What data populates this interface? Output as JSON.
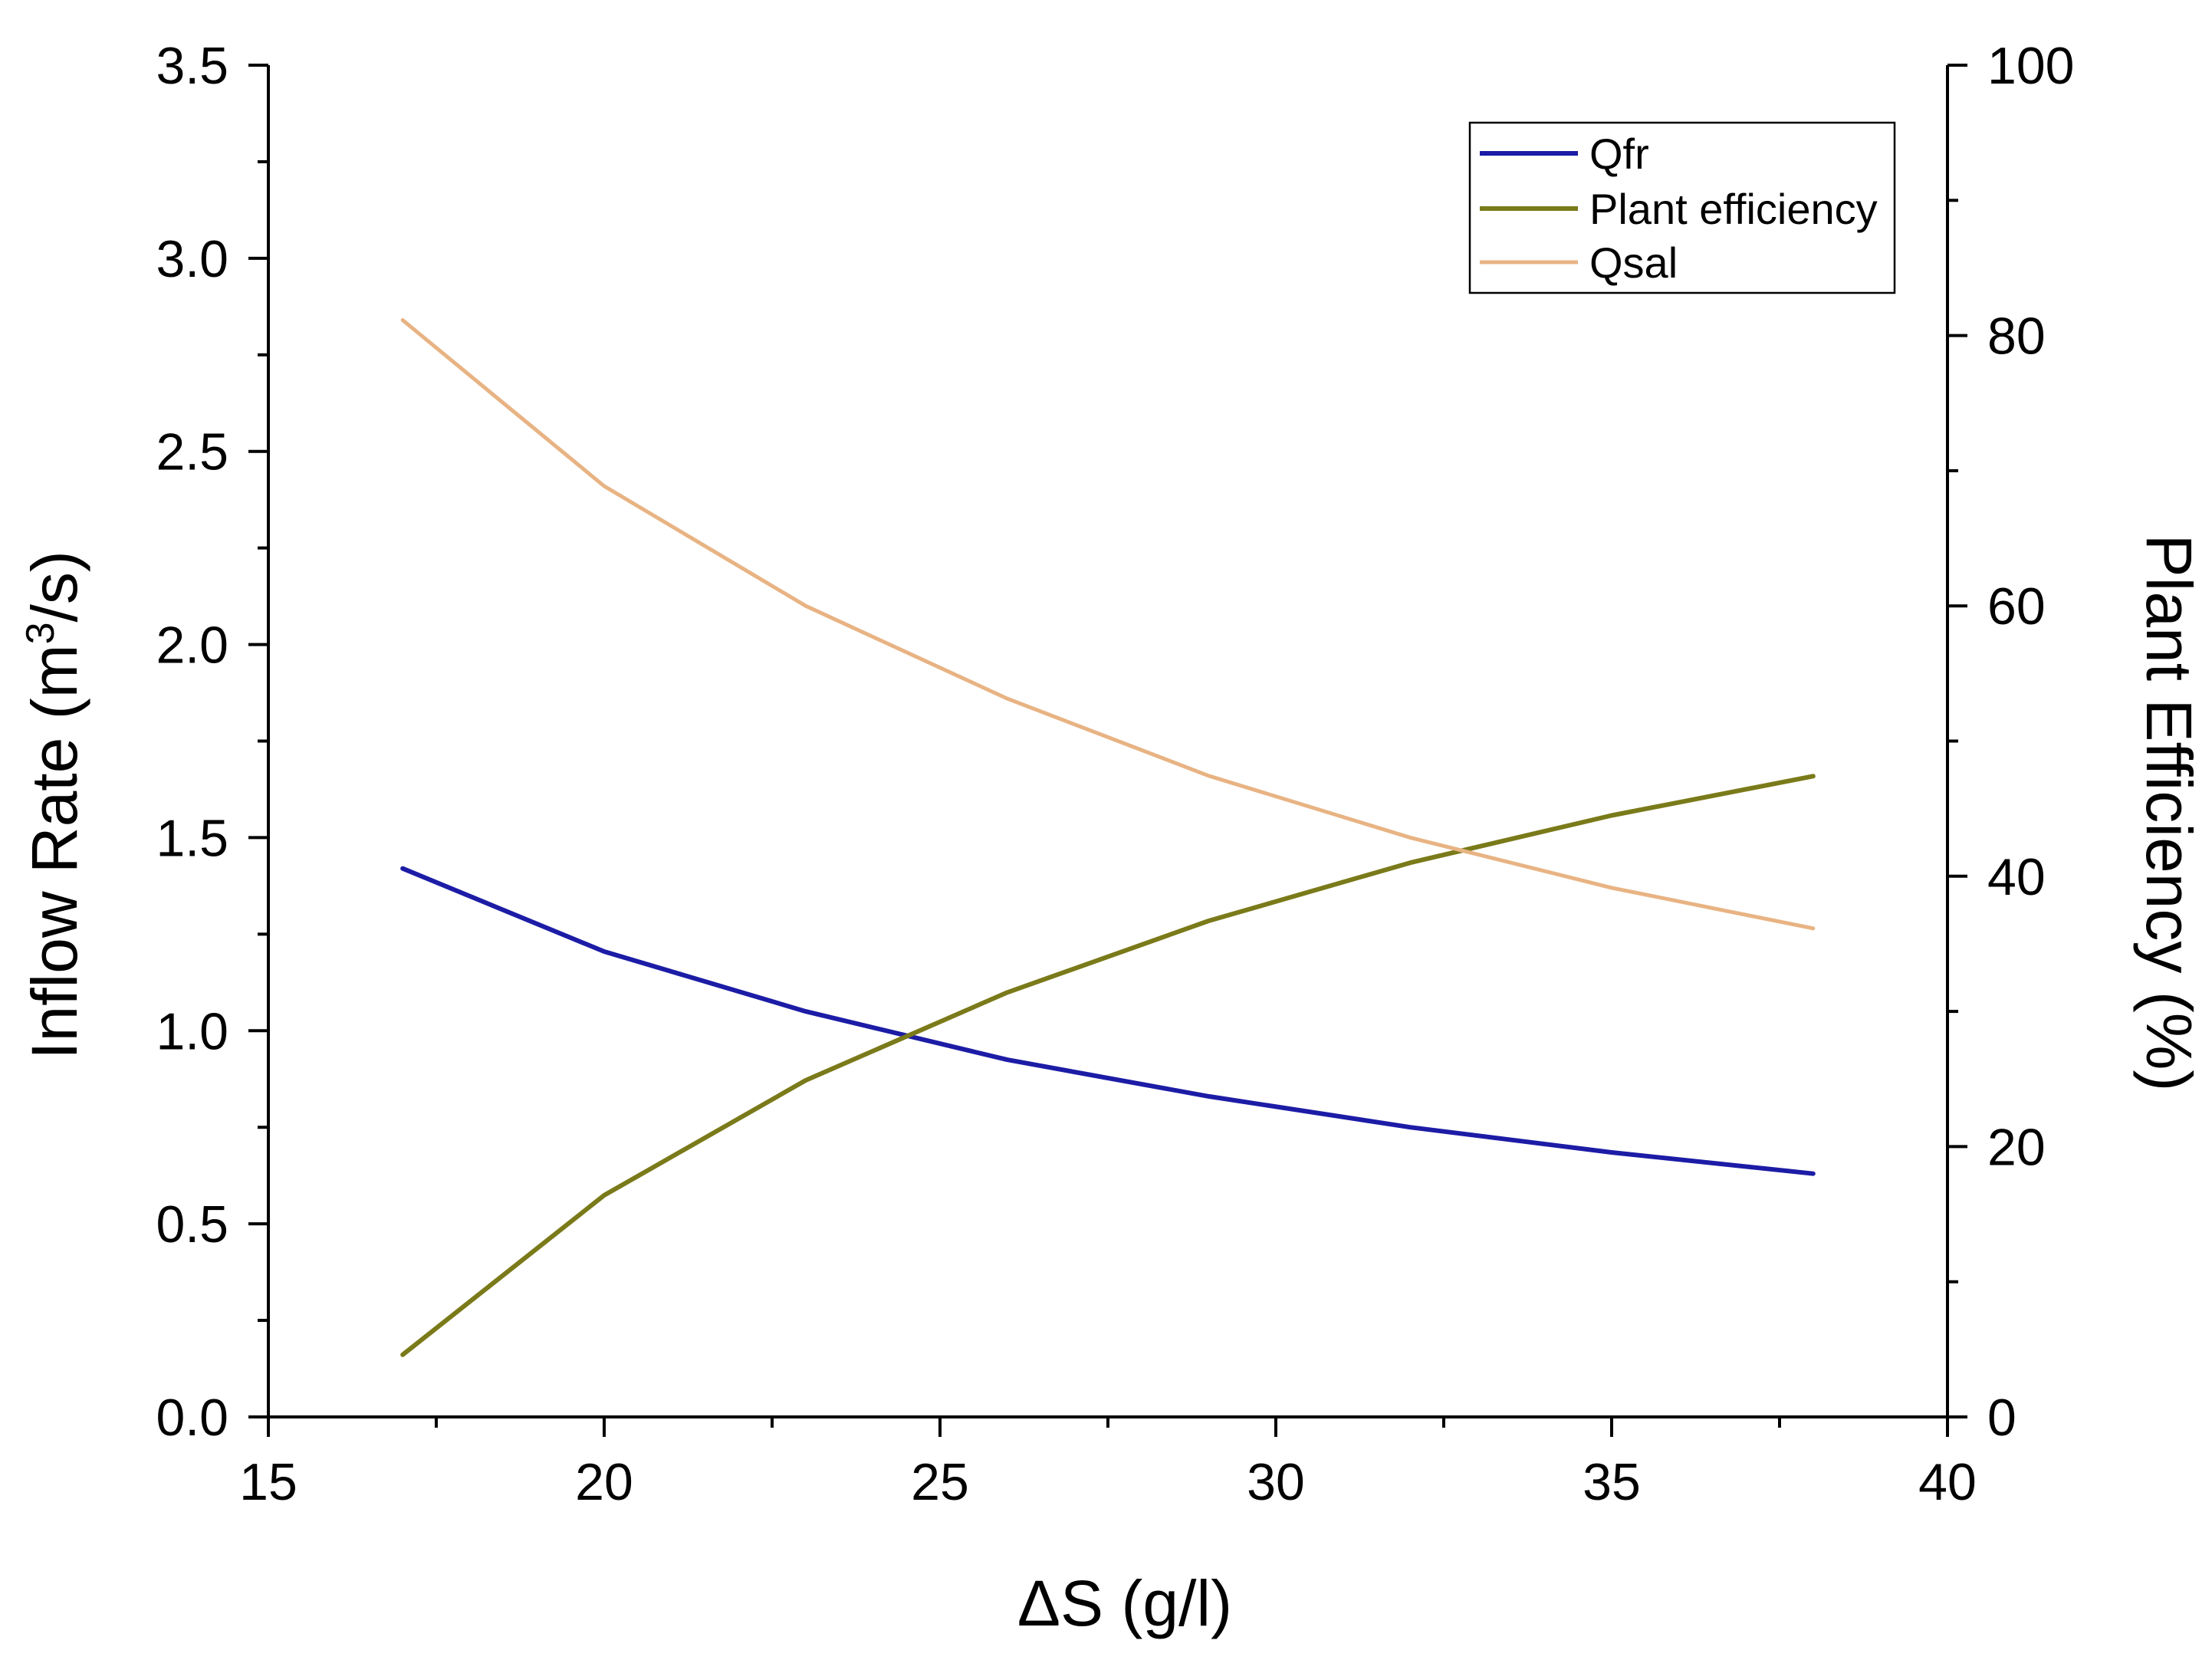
{
  "chart_data": {
    "type": "line",
    "x": [
      17,
      20,
      23,
      26,
      29,
      32,
      35,
      38
    ],
    "xlabel": "ΔS (g/l)",
    "xlim": [
      15,
      40
    ],
    "xticks": [
      "15",
      "20",
      "25",
      "30",
      "35",
      "40"
    ],
    "ylabel_left": {
      "main": "Inflow Rate (m",
      "sup": "3",
      "tail": "/s)"
    },
    "ylim_left": [
      0,
      3.5
    ],
    "yticks_left": [
      "0.0",
      "0.5",
      "1.0",
      "1.5",
      "2.0",
      "2.5",
      "3.0",
      "3.5"
    ],
    "ylabel_right": "Plant Efficiency (%)",
    "ylim_right": [
      0,
      100
    ],
    "yticks_right": [
      "0",
      "20",
      "40",
      "60",
      "80",
      "100"
    ],
    "legend_position": "top-right",
    "series": [
      {
        "name": "Qfr",
        "axis": "left",
        "color": "#1c1ca6",
        "values": [
          1.42,
          1.205,
          1.05,
          0.925,
          0.83,
          0.75,
          0.685,
          0.63
        ]
      },
      {
        "name": "Plant efficiency",
        "axis": "right",
        "color": "#7a7a1a",
        "values": [
          4.6,
          16.4,
          24.9,
          31.4,
          36.7,
          41.0,
          44.5,
          47.4
        ]
      },
      {
        "name": "Qsal",
        "axis": "left",
        "color": "#e8b383",
        "values": [
          2.84,
          2.41,
          2.1,
          1.86,
          1.66,
          1.5,
          1.37,
          1.265
        ]
      }
    ]
  }
}
